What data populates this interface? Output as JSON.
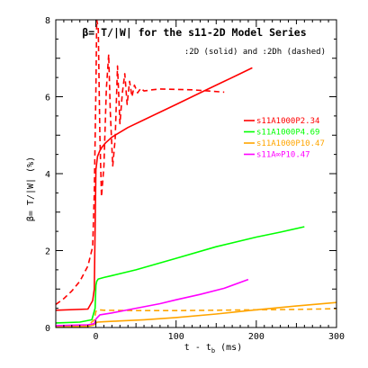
{
  "chart_data": {
    "type": "line",
    "title": "β= T/|W| for the s11-2D Model Series",
    "subtitle": ":2D (solid) and :2Dh (dashed)",
    "xlabel": "t - t_b (ms)",
    "xlabel_main": "t - t",
    "xlabel_sub": "b",
    "xlabel_unit": " (ms)",
    "ylabel": "β= T/|W| (%)",
    "xlim": [
      -50,
      300
    ],
    "ylim": [
      0,
      8
    ],
    "xticks": [
      0,
      100,
      200,
      300
    ],
    "yticks": [
      0,
      2,
      4,
      6,
      8
    ],
    "legend_position": "right",
    "colors": {
      "red": "#ff0000",
      "green": "#00ff00",
      "orange": "#ffa500",
      "magenta": "#ff00ff"
    },
    "series": [
      {
        "name": "s11A1000P2.34",
        "color": "#ff0000",
        "style": "solid",
        "x": [
          -50,
          -10,
          -4,
          -2,
          0,
          2,
          5,
          8,
          12,
          20,
          40,
          60,
          80,
          100,
          120,
          140,
          160,
          180,
          195
        ],
        "y": [
          0.45,
          0.48,
          0.7,
          1.0,
          4.1,
          4.45,
          4.6,
          4.7,
          4.8,
          4.95,
          5.2,
          5.4,
          5.6,
          5.8,
          6.0,
          6.2,
          6.4,
          6.6,
          6.75
        ]
      },
      {
        "name": "",
        "color": "#ff0000",
        "style": "dashed",
        "x": [
          -50,
          -40,
          -30,
          -20,
          -10,
          -4,
          -2,
          0,
          1,
          3,
          5,
          7,
          10,
          13,
          16,
          18,
          21,
          24,
          27,
          30,
          33,
          36,
          39,
          42,
          45,
          48,
          52,
          56,
          60,
          70,
          80,
          100,
          120,
          140,
          160
        ],
        "y": [
          0.6,
          0.75,
          0.95,
          1.2,
          1.6,
          2.1,
          3.5,
          6.2,
          8.0,
          7.8,
          5.0,
          3.4,
          4.2,
          6.2,
          7.1,
          5.6,
          4.2,
          4.9,
          6.8,
          5.3,
          6.1,
          6.6,
          5.8,
          6.4,
          6.0,
          6.3,
          6.1,
          6.22,
          6.15,
          6.18,
          6.2,
          6.19,
          6.18,
          6.15,
          6.12
        ]
      },
      {
        "name": "s11A1000P4.69",
        "color": "#00ff00",
        "style": "solid",
        "x": [
          -50,
          -20,
          -5,
          -1,
          0,
          1,
          3,
          10,
          20,
          50,
          100,
          150,
          200,
          230,
          260
        ],
        "y": [
          0.12,
          0.14,
          0.2,
          0.5,
          1.1,
          1.2,
          1.26,
          1.3,
          1.35,
          1.5,
          1.8,
          2.1,
          2.35,
          2.48,
          2.62
        ]
      },
      {
        "name": "s11A1000P10.47",
        "color": "#ffa500",
        "style": "solid",
        "x": [
          -50,
          -10,
          -2,
          0,
          2,
          10,
          30,
          60,
          100,
          150,
          200,
          250,
          300
        ],
        "y": [
          0.02,
          0.03,
          0.07,
          0.12,
          0.14,
          0.15,
          0.17,
          0.2,
          0.26,
          0.35,
          0.46,
          0.56,
          0.65
        ]
      },
      {
        "name": "",
        "color": "#ffa500",
        "style": "dashed",
        "x": [
          -50,
          -10,
          -2,
          0,
          3,
          10,
          50,
          100,
          150,
          200,
          250,
          300
        ],
        "y": [
          0.02,
          0.05,
          0.2,
          0.42,
          0.46,
          0.45,
          0.44,
          0.44,
          0.45,
          0.46,
          0.47,
          0.49
        ]
      },
      {
        "name": "s11A∞P10.47",
        "color": "#ff00ff",
        "style": "solid",
        "x": [
          -50,
          -10,
          -2,
          0,
          5,
          20,
          50,
          80,
          100,
          130,
          160,
          190
        ],
        "y": [
          0.05,
          0.07,
          0.1,
          0.22,
          0.33,
          0.38,
          0.5,
          0.62,
          0.72,
          0.86,
          1.02,
          1.25
        ]
      }
    ]
  }
}
